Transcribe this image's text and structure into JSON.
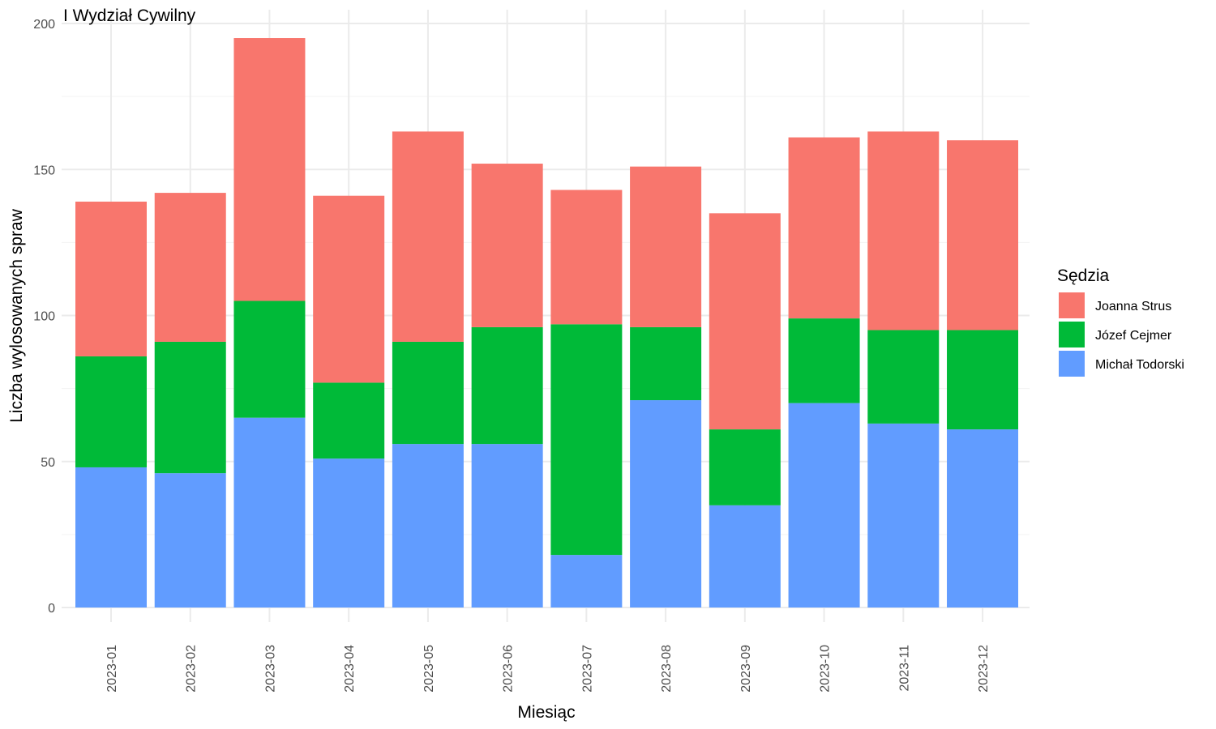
{
  "chart_data": {
    "type": "bar",
    "stacked": true,
    "title": "I Wydział Cywilny",
    "xlabel": "Miesiąc",
    "ylabel": "Liczba wylosowanych spraw",
    "ylim": [
      0,
      200
    ],
    "yticks": [
      0,
      50,
      100,
      150,
      200
    ],
    "grid": true,
    "legend_title": "Sędzia",
    "legend_position": "right",
    "categories": [
      "2023-01",
      "2023-02",
      "2023-03",
      "2023-04",
      "2023-05",
      "2023-06",
      "2023-07",
      "2023-08",
      "2023-09",
      "2023-10",
      "2023-11",
      "2023-12"
    ],
    "series": [
      {
        "name": "Michał Todorski",
        "color": "#619CFF",
        "values": [
          48,
          46,
          65,
          51,
          56,
          56,
          18,
          71,
          35,
          70,
          63,
          61
        ]
      },
      {
        "name": "Józef Cejmer",
        "color": "#00BA38",
        "values": [
          38,
          45,
          40,
          26,
          35,
          40,
          79,
          25,
          26,
          29,
          32,
          34
        ]
      },
      {
        "name": "Joanna Strus",
        "color": "#F8766D",
        "values": [
          53,
          51,
          90,
          64,
          72,
          56,
          46,
          55,
          74,
          62,
          68,
          65
        ]
      }
    ],
    "legend_order": [
      "Joanna Strus",
      "Józef Cejmer",
      "Michał Todorski"
    ]
  }
}
